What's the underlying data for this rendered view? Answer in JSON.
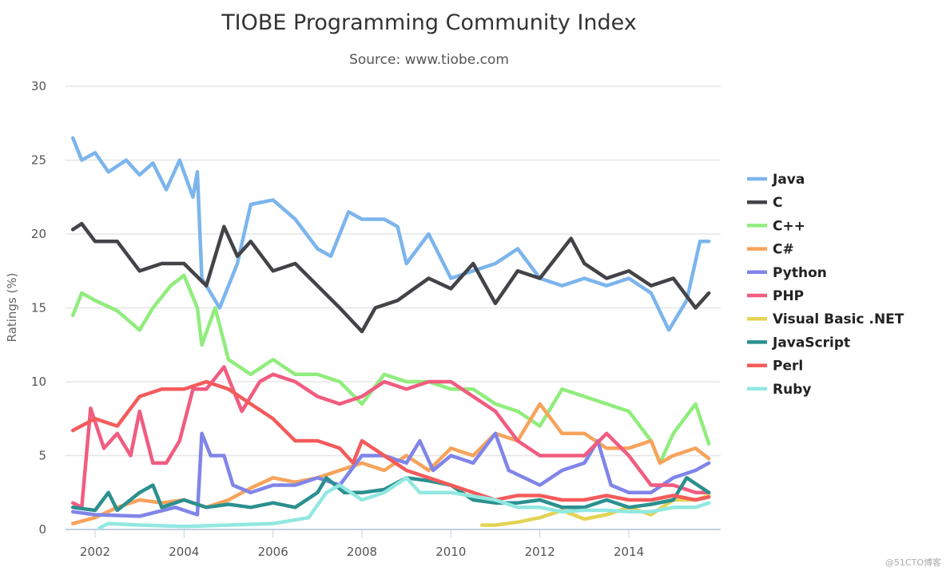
{
  "chart_data": {
    "type": "line",
    "title": "TIOBE Programming Community Index",
    "subtitle": "Source: www.tiobe.com",
    "xlabel": "",
    "ylabel": "Ratings (%)",
    "ylim": [
      0,
      30
    ],
    "xlim": [
      2001.5,
      2015.8
    ],
    "yticks": [
      "0",
      "5",
      "10",
      "15",
      "20",
      "25",
      "30"
    ],
    "xticks": [
      "2002",
      "2004",
      "2006",
      "2008",
      "2010",
      "2012",
      "2014"
    ],
    "grid": "horizontal",
    "legend_position": "right",
    "series": [
      {
        "name": "Java",
        "color": "#7cb5ec",
        "points": [
          [
            2001.5,
            26.5
          ],
          [
            2001.7,
            25
          ],
          [
            2002,
            25.5
          ],
          [
            2002.3,
            24.2
          ],
          [
            2002.7,
            25
          ],
          [
            2003,
            24
          ],
          [
            2003.3,
            24.8
          ],
          [
            2003.6,
            23
          ],
          [
            2003.9,
            25
          ],
          [
            2004.2,
            22.5
          ],
          [
            2004.3,
            24.2
          ],
          [
            2004.4,
            17
          ],
          [
            2004.8,
            15
          ],
          [
            2005.2,
            18
          ],
          [
            2005.5,
            22
          ],
          [
            2006,
            22.3
          ],
          [
            2006.5,
            21
          ],
          [
            2007,
            19
          ],
          [
            2007.3,
            18.5
          ],
          [
            2007.7,
            21.5
          ],
          [
            2008,
            21
          ],
          [
            2008.5,
            21
          ],
          [
            2008.8,
            20.5
          ],
          [
            2009,
            18
          ],
          [
            2009.5,
            20
          ],
          [
            2010,
            17
          ],
          [
            2010.5,
            17.5
          ],
          [
            2011,
            18
          ],
          [
            2011.5,
            19
          ],
          [
            2012,
            17
          ],
          [
            2012.5,
            16.5
          ],
          [
            2013,
            17
          ],
          [
            2013.5,
            16.5
          ],
          [
            2014,
            17
          ],
          [
            2014.5,
            16
          ],
          [
            2014.9,
            13.5
          ],
          [
            2015.3,
            15.5
          ],
          [
            2015.6,
            19.5
          ],
          [
            2015.8,
            19.5
          ]
        ]
      },
      {
        "name": "C",
        "color": "#434348",
        "points": [
          [
            2001.5,
            20.3
          ],
          [
            2001.7,
            20.7
          ],
          [
            2002,
            19.5
          ],
          [
            2002.5,
            19.5
          ],
          [
            2003,
            17.5
          ],
          [
            2003.5,
            18
          ],
          [
            2004,
            18
          ],
          [
            2004.5,
            16.5
          ],
          [
            2004.9,
            20.5
          ],
          [
            2005.2,
            18.5
          ],
          [
            2005.5,
            19.5
          ],
          [
            2006,
            17.5
          ],
          [
            2006.5,
            18
          ],
          [
            2007,
            16.5
          ],
          [
            2007.5,
            15
          ],
          [
            2008,
            13.4
          ],
          [
            2008.3,
            15
          ],
          [
            2008.8,
            15.5
          ],
          [
            2009.5,
            17
          ],
          [
            2010,
            16.3
          ],
          [
            2010.5,
            18
          ],
          [
            2011,
            15.3
          ],
          [
            2011.5,
            17.5
          ],
          [
            2012,
            17
          ],
          [
            2012.7,
            19.7
          ],
          [
            2013,
            18
          ],
          [
            2013.5,
            17
          ],
          [
            2014,
            17.5
          ],
          [
            2014.5,
            16.5
          ],
          [
            2015,
            17
          ],
          [
            2015.5,
            15
          ],
          [
            2015.8,
            16
          ]
        ]
      },
      {
        "name": "C++",
        "color": "#90ed7d",
        "points": [
          [
            2001.5,
            14.5
          ],
          [
            2001.7,
            16
          ],
          [
            2002,
            15.5
          ],
          [
            2002.5,
            14.8
          ],
          [
            2003,
            13.5
          ],
          [
            2003.3,
            15
          ],
          [
            2003.7,
            16.5
          ],
          [
            2004,
            17.2
          ],
          [
            2004.3,
            15
          ],
          [
            2004.4,
            12.5
          ],
          [
            2004.7,
            15
          ],
          [
            2005,
            11.5
          ],
          [
            2005.5,
            10.5
          ],
          [
            2006,
            11.5
          ],
          [
            2006.5,
            10.5
          ],
          [
            2007,
            10.5
          ],
          [
            2007.5,
            10
          ],
          [
            2008,
            8.5
          ],
          [
            2008.5,
            10.5
          ],
          [
            2009,
            10
          ],
          [
            2009.5,
            10
          ],
          [
            2010,
            9.5
          ],
          [
            2010.5,
            9.5
          ],
          [
            2011,
            8.5
          ],
          [
            2011.5,
            8
          ],
          [
            2012,
            7
          ],
          [
            2012.5,
            9.5
          ],
          [
            2013,
            9
          ],
          [
            2013.5,
            8.5
          ],
          [
            2014,
            8
          ],
          [
            2014.5,
            6
          ],
          [
            2014.7,
            4.5
          ],
          [
            2015,
            6.5
          ],
          [
            2015.5,
            8.5
          ],
          [
            2015.8,
            5.8
          ]
        ]
      },
      {
        "name": "C#",
        "color": "#f7a35c",
        "points": [
          [
            2001.5,
            0.4
          ],
          [
            2002,
            0.8
          ],
          [
            2002.5,
            1.5
          ],
          [
            2003,
            2
          ],
          [
            2003.5,
            1.8
          ],
          [
            2004,
            2
          ],
          [
            2004.5,
            1.5
          ],
          [
            2005,
            2
          ],
          [
            2005.5,
            2.8
          ],
          [
            2006,
            3.5
          ],
          [
            2006.5,
            3.2
          ],
          [
            2007,
            3.5
          ],
          [
            2007.5,
            4
          ],
          [
            2008,
            4.5
          ],
          [
            2008.5,
            4
          ],
          [
            2009,
            5
          ],
          [
            2009.5,
            4
          ],
          [
            2010,
            5.5
          ],
          [
            2010.5,
            5
          ],
          [
            2011,
            6.5
          ],
          [
            2011.5,
            6
          ],
          [
            2012,
            8.5
          ],
          [
            2012.5,
            6.5
          ],
          [
            2013,
            6.5
          ],
          [
            2013.5,
            5.5
          ],
          [
            2014,
            5.5
          ],
          [
            2014.5,
            6
          ],
          [
            2014.7,
            4.5
          ],
          [
            2015,
            5
          ],
          [
            2015.5,
            5.5
          ],
          [
            2015.8,
            4.8
          ]
        ]
      },
      {
        "name": "Python",
        "color": "#8085e9",
        "points": [
          [
            2001.5,
            1.2
          ],
          [
            2002,
            1.0
          ],
          [
            2003,
            0.9
          ],
          [
            2003.8,
            1.5
          ],
          [
            2004.3,
            1
          ],
          [
            2004.4,
            6.5
          ],
          [
            2004.6,
            5
          ],
          [
            2004.9,
            5
          ],
          [
            2005.1,
            3
          ],
          [
            2005.5,
            2.5
          ],
          [
            2006,
            3
          ],
          [
            2006.5,
            3
          ],
          [
            2007,
            3.5
          ],
          [
            2007.5,
            3
          ],
          [
            2008,
            5
          ],
          [
            2008.5,
            5
          ],
          [
            2009,
            4.5
          ],
          [
            2009.3,
            6
          ],
          [
            2009.6,
            4
          ],
          [
            2010,
            5
          ],
          [
            2010.5,
            4.5
          ],
          [
            2011,
            6.5
          ],
          [
            2011.3,
            4
          ],
          [
            2012,
            3
          ],
          [
            2012.5,
            4
          ],
          [
            2013,
            4.5
          ],
          [
            2013.3,
            6
          ],
          [
            2013.6,
            3
          ],
          [
            2014,
            2.5
          ],
          [
            2014.5,
            2.5
          ],
          [
            2015,
            3.5
          ],
          [
            2015.5,
            4
          ],
          [
            2015.8,
            4.5
          ]
        ]
      },
      {
        "name": "PHP",
        "color": "#f15c80",
        "points": [
          [
            2001.5,
            1.8
          ],
          [
            2001.7,
            1.5
          ],
          [
            2001.9,
            8.2
          ],
          [
            2002.2,
            5.5
          ],
          [
            2002.5,
            6.5
          ],
          [
            2002.8,
            5
          ],
          [
            2003,
            8
          ],
          [
            2003.3,
            4.5
          ],
          [
            2003.6,
            4.5
          ],
          [
            2003.9,
            6
          ],
          [
            2004.2,
            9.5
          ],
          [
            2004.5,
            9.5
          ],
          [
            2004.9,
            11
          ],
          [
            2005.3,
            8
          ],
          [
            2005.7,
            10
          ],
          [
            2006,
            10.5
          ],
          [
            2006.5,
            10
          ],
          [
            2007,
            9
          ],
          [
            2007.5,
            8.5
          ],
          [
            2008,
            9
          ],
          [
            2008.5,
            10
          ],
          [
            2009,
            9.5
          ],
          [
            2009.5,
            10
          ],
          [
            2010,
            10
          ],
          [
            2010.5,
            9
          ],
          [
            2011,
            8
          ],
          [
            2011.5,
            6
          ],
          [
            2012,
            5
          ],
          [
            2012.5,
            5
          ],
          [
            2013,
            5
          ],
          [
            2013.5,
            6.5
          ],
          [
            2014,
            5
          ],
          [
            2014.5,
            3
          ],
          [
            2015,
            3
          ],
          [
            2015.5,
            2.5
          ],
          [
            2015.8,
            2.5
          ]
        ]
      },
      {
        "name": "Visual Basic .NET",
        "color": "#e4d354",
        "points": [
          [
            2010.7,
            0.3
          ],
          [
            2011,
            0.3
          ],
          [
            2011.5,
            0.5
          ],
          [
            2012,
            0.8
          ],
          [
            2012.5,
            1.3
          ],
          [
            2013,
            0.7
          ],
          [
            2013.5,
            1
          ],
          [
            2014,
            1.5
          ],
          [
            2014.5,
            1
          ],
          [
            2015,
            2
          ],
          [
            2015.5,
            2
          ],
          [
            2015.8,
            2.3
          ]
        ]
      },
      {
        "name": "JavaScript",
        "color": "#2b908f",
        "points": [
          [
            2001.5,
            1.5
          ],
          [
            2002,
            1.3
          ],
          [
            2002.3,
            2.5
          ],
          [
            2002.5,
            1.3
          ],
          [
            2003,
            2.5
          ],
          [
            2003.3,
            3
          ],
          [
            2003.5,
            1.5
          ],
          [
            2004,
            2
          ],
          [
            2004.5,
            1.5
          ],
          [
            2005,
            1.7
          ],
          [
            2005.5,
            1.5
          ],
          [
            2006,
            1.8
          ],
          [
            2006.5,
            1.5
          ],
          [
            2007,
            2.5
          ],
          [
            2007.2,
            3.5
          ],
          [
            2007.6,
            2.5
          ],
          [
            2008,
            2.5
          ],
          [
            2008.5,
            2.7
          ],
          [
            2009,
            3.5
          ],
          [
            2009.5,
            3.3
          ],
          [
            2010,
            3
          ],
          [
            2010.5,
            2
          ],
          [
            2011,
            1.8
          ],
          [
            2011.5,
            1.8
          ],
          [
            2012,
            2
          ],
          [
            2012.5,
            1.5
          ],
          [
            2013,
            1.5
          ],
          [
            2013.5,
            2
          ],
          [
            2014,
            1.5
          ],
          [
            2014.5,
            1.7
          ],
          [
            2015,
            2
          ],
          [
            2015.3,
            3.5
          ],
          [
            2015.8,
            2.5
          ]
        ]
      },
      {
        "name": "Perl",
        "color": "#f45b5b",
        "points": [
          [
            2001.5,
            6.7
          ],
          [
            2002,
            7.5
          ],
          [
            2002.5,
            7
          ],
          [
            2003,
            9
          ],
          [
            2003.5,
            9.5
          ],
          [
            2004,
            9.5
          ],
          [
            2004.5,
            10
          ],
          [
            2005,
            9.5
          ],
          [
            2005.5,
            8.5
          ],
          [
            2006,
            7.5
          ],
          [
            2006.5,
            6
          ],
          [
            2007,
            6
          ],
          [
            2007.5,
            5.5
          ],
          [
            2007.8,
            4.5
          ],
          [
            2008,
            6
          ],
          [
            2008.5,
            5
          ],
          [
            2009,
            4
          ],
          [
            2009.5,
            3.5
          ],
          [
            2010,
            3
          ],
          [
            2010.5,
            2.5
          ],
          [
            2011,
            2
          ],
          [
            2011.5,
            2.3
          ],
          [
            2012,
            2.3
          ],
          [
            2012.5,
            2
          ],
          [
            2013,
            2
          ],
          [
            2013.5,
            2.3
          ],
          [
            2014,
            2
          ],
          [
            2014.5,
            2
          ],
          [
            2015,
            2.3
          ],
          [
            2015.5,
            2
          ],
          [
            2015.8,
            2.2
          ]
        ]
      },
      {
        "name": "Ruby",
        "color": "#91e8e1",
        "points": [
          [
            2002.1,
            0.1
          ],
          [
            2002.3,
            0.4
          ],
          [
            2003,
            0.3
          ],
          [
            2004,
            0.2
          ],
          [
            2005,
            0.3
          ],
          [
            2006,
            0.4
          ],
          [
            2006.8,
            0.8
          ],
          [
            2007.2,
            2.5
          ],
          [
            2007.5,
            3
          ],
          [
            2008,
            2
          ],
          [
            2008.5,
            2.5
          ],
          [
            2009,
            3.5
          ],
          [
            2009.3,
            2.5
          ],
          [
            2010,
            2.5
          ],
          [
            2011,
            2
          ],
          [
            2011.5,
            1.5
          ],
          [
            2012,
            1.5
          ],
          [
            2012.5,
            1.2
          ],
          [
            2013,
            1.3
          ],
          [
            2013.5,
            1.3
          ],
          [
            2014,
            1.2
          ],
          [
            2014.5,
            1.2
          ],
          [
            2015,
            1.5
          ],
          [
            2015.5,
            1.5
          ],
          [
            2015.8,
            1.8
          ]
        ]
      }
    ]
  },
  "watermark": "@51CTO博客"
}
